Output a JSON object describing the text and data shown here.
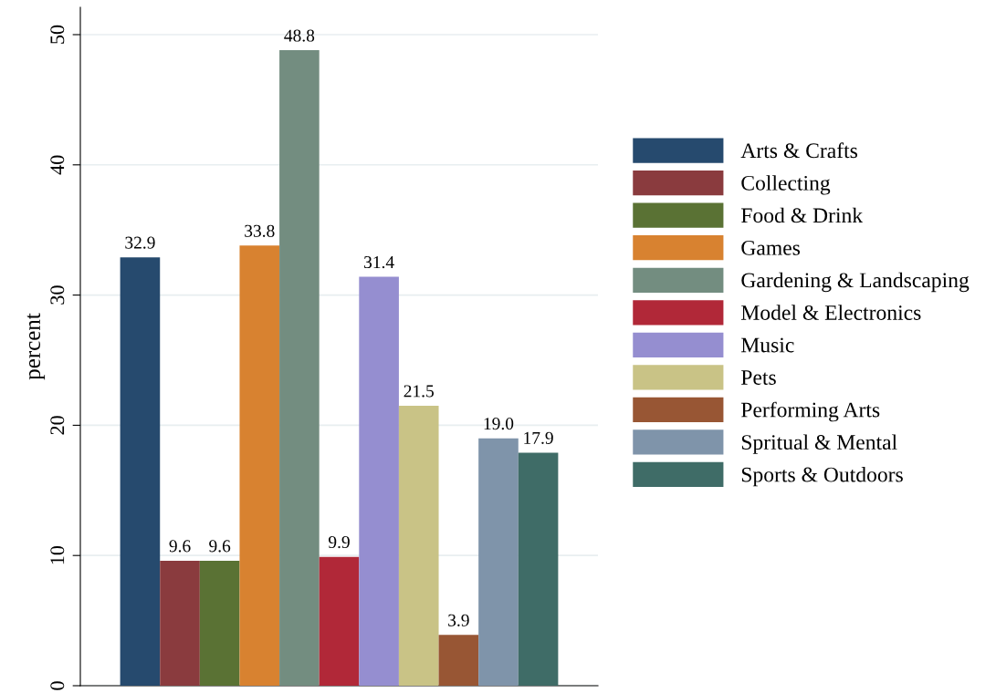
{
  "chart_data": {
    "type": "bar",
    "ylabel": "percent",
    "categories": [
      null
    ],
    "series": [
      {
        "name": "Arts & Crafts",
        "color": "#264a6e",
        "values": [
          32.9
        ]
      },
      {
        "name": "Collecting",
        "color": "#8a3b3e",
        "values": [
          9.6
        ]
      },
      {
        "name": "Food & Drink",
        "color": "#5a7234",
        "values": [
          9.6
        ]
      },
      {
        "name": "Games",
        "color": "#d88230",
        "values": [
          33.8
        ]
      },
      {
        "name": "Gardening & Landscaping",
        "color": "#738d80",
        "values": [
          48.8
        ]
      },
      {
        "name": "Model & Electronics",
        "color": "#b12838",
        "values": [
          9.9
        ]
      },
      {
        "name": "Music",
        "color": "#958ed0",
        "values": [
          31.4
        ]
      },
      {
        "name": "Pets",
        "color": "#c9c386",
        "values": [
          21.5
        ]
      },
      {
        "name": "Performing Arts",
        "color": "#985634",
        "values": [
          3.9
        ]
      },
      {
        "name": "Spritual & Mental",
        "color": "#7f94aa",
        "values": [
          19.0
        ],
        "value_labels": [
          "19.0"
        ]
      },
      {
        "name": "Sports & Outdoors",
        "color": "#3f6c67",
        "values": [
          17.9
        ]
      }
    ],
    "ylim": [
      0,
      52.1
    ],
    "yticks": [
      0,
      10,
      20,
      30,
      40,
      50
    ],
    "grid": "y",
    "legend": "right",
    "data_labels": true,
    "tick_labels": "y"
  }
}
